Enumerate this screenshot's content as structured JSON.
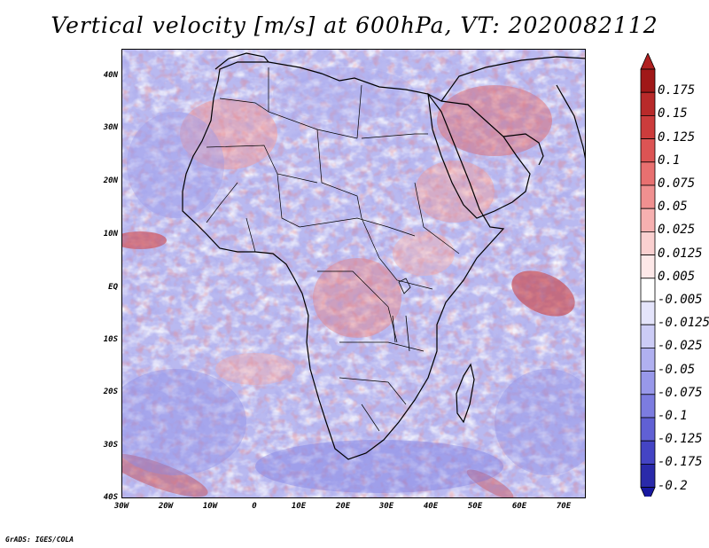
{
  "title": "Vertical velocity [m/s] at 600hPa, VT: 2020082112",
  "credit": "GrADS: IGES/COLA",
  "map": {
    "lat_labels": [
      "40N",
      "30N",
      "20N",
      "10N",
      "EQ",
      "10S",
      "20S",
      "30S",
      "40S"
    ],
    "lon_labels": [
      "30W",
      "20W",
      "10W",
      "0",
      "10E",
      "20E",
      "30E",
      "40E",
      "50E",
      "60E",
      "70E"
    ]
  },
  "colorbar": {
    "levels": [
      {
        "label": "0.175",
        "color": "#a01818"
      },
      {
        "label": "0.15",
        "color": "#b82a2a"
      },
      {
        "label": "0.125",
        "color": "#cc3c3c"
      },
      {
        "label": "0.1",
        "color": "#dc5454"
      },
      {
        "label": "0.075",
        "color": "#e87070"
      },
      {
        "label": "0.05",
        "color": "#f09090"
      },
      {
        "label": "0.025",
        "color": "#f6b0b0"
      },
      {
        "label": "0.0125",
        "color": "#fad0d0"
      },
      {
        "label": "0.005",
        "color": "#fde8e8"
      },
      {
        "label": "-0.005",
        "color": "#ffffff"
      },
      {
        "label": "-0.0125",
        "color": "#e4e4fb"
      },
      {
        "label": "-0.025",
        "color": "#ccccf6"
      },
      {
        "label": "-0.05",
        "color": "#b0b0f0"
      },
      {
        "label": "-0.075",
        "color": "#9898ea"
      },
      {
        "label": "-0.1",
        "color": "#7c7ce0"
      },
      {
        "label": "-0.125",
        "color": "#6060d4"
      },
      {
        "label": "-0.175",
        "color": "#4444c4"
      },
      {
        "label": "-0.2",
        "color": "#2a2aaa"
      }
    ],
    "top_color": "#b02020",
    "bottom_color": "#1818a0"
  }
}
